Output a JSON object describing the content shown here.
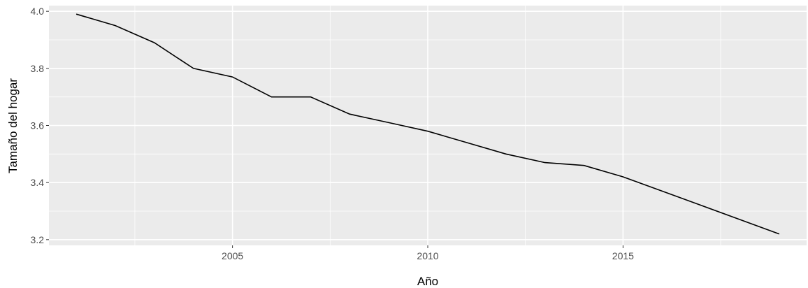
{
  "chart_data": {
    "type": "line",
    "title": "",
    "xlabel": "Año",
    "ylabel": "Tamaño del hogar",
    "xlim": [
      2000.3,
      2019.7
    ],
    "ylim": [
      3.18,
      4.02
    ],
    "x_ticks": [
      2005,
      2010,
      2015
    ],
    "x_tick_labels": [
      "2005",
      "2010",
      "2015"
    ],
    "y_ticks": [
      3.2,
      3.4,
      3.6,
      3.8,
      4.0
    ],
    "y_tick_labels": [
      "3.2",
      "3.4",
      "3.6",
      "3.8",
      "4.0"
    ],
    "grid": true,
    "background": "#ebebeb",
    "grid_color": "#ffffff",
    "line_color": "#000000",
    "series": [
      {
        "x": [
          2001,
          2002,
          2003,
          2004,
          2005,
          2006,
          2007,
          2008,
          2009,
          2010,
          2011,
          2012,
          2013,
          2014,
          2015,
          2016,
          2017,
          2018,
          2019
        ],
        "y": [
          3.99,
          3.95,
          3.89,
          3.8,
          3.77,
          3.7,
          3.7,
          3.64,
          3.61,
          3.58,
          3.54,
          3.5,
          3.47,
          3.46,
          3.42,
          3.37,
          3.32,
          3.27,
          3.22
        ]
      }
    ]
  }
}
